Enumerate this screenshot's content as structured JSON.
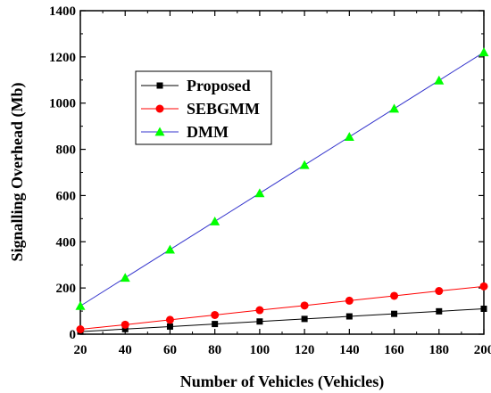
{
  "chart_data": {
    "type": "line",
    "xlabel": "Number of Vehicles (Vehicles)",
    "ylabel": "Signalling Overhead (Mb)",
    "xlim": [
      20,
      200
    ],
    "ylim": [
      0,
      1400
    ],
    "xticks": [
      20,
      40,
      60,
      80,
      100,
      120,
      140,
      160,
      180,
      200
    ],
    "yticks": [
      0,
      200,
      400,
      600,
      800,
      1000,
      1200,
      1400
    ],
    "grid": false,
    "legend_position": "top-left",
    "x": [
      20,
      40,
      60,
      80,
      100,
      120,
      140,
      160,
      180,
      200
    ],
    "series": [
      {
        "name": "Proposed",
        "color": "#000000",
        "marker": "square",
        "values": [
          11,
          22,
          33,
          44,
          55,
          66,
          77,
          88,
          99,
          110
        ]
      },
      {
        "name": "SEBGMM",
        "color": "#ff0000",
        "marker": "circle",
        "values": [
          21,
          41,
          62,
          83,
          104,
          124,
          145,
          166,
          187,
          207
        ]
      },
      {
        "name": "DMM",
        "color": "#00ff00",
        "line_color": "#3333cc",
        "marker": "triangle",
        "values": [
          122,
          244,
          366,
          488,
          610,
          732,
          854,
          976,
          1098,
          1220
        ]
      }
    ]
  }
}
